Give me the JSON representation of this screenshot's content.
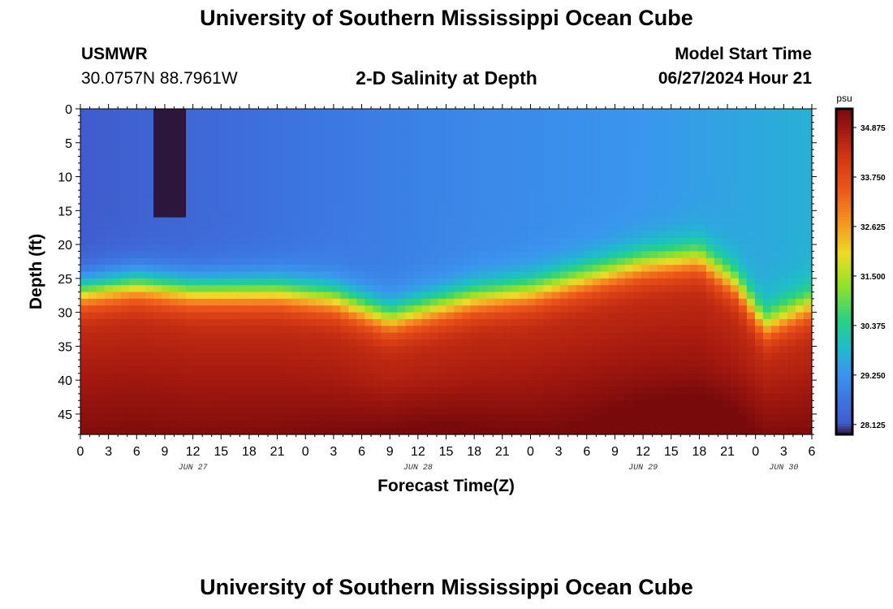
{
  "header": {
    "title": "University of Southern Mississippi Ocean Cube",
    "station": "USMWR",
    "coordinates": "30.0757N  88.7961W",
    "subtitle": "2-D Salinity at Depth",
    "model_start_label": "Model Start Time",
    "model_start_value": "06/27/2024 Hour 21"
  },
  "footer": {
    "title": "University of Southern Mississippi Ocean Cube"
  },
  "chart_data": {
    "type": "heatmap",
    "title": "2-D Salinity at Depth",
    "xlabel": "Forecast Time(Z)",
    "ylabel": "Depth (ft)",
    "x_tick_labels": [
      "0",
      "3",
      "6",
      "9",
      "12",
      "15",
      "18",
      "21",
      "0",
      "3",
      "6",
      "9",
      "12",
      "15",
      "18",
      "21",
      "0",
      "3",
      "6",
      "9",
      "12",
      "15",
      "18",
      "21",
      "0",
      "3",
      "6"
    ],
    "x_date_labels": [
      {
        "label": "JUN 27",
        "hour": 12
      },
      {
        "label": "JUN 28",
        "hour": 36
      },
      {
        "label": "JUN 29",
        "hour": 60
      },
      {
        "label": "JUN 30",
        "hour": 75
      }
    ],
    "x_range_hours": [
      0,
      78
    ],
    "y_ticks": [
      0,
      5,
      10,
      15,
      20,
      25,
      30,
      35,
      40,
      45
    ],
    "ylim": [
      0,
      48
    ],
    "colorbar": {
      "unit": "psu",
      "ticks": [
        "34.875",
        "33.750",
        "32.625",
        "31.500",
        "30.375",
        "29.250",
        "28.125"
      ],
      "range": [
        27.9,
        35.3
      ]
    },
    "halocline_depth_ft": [
      {
        "hour": 0,
        "depth": 27
      },
      {
        "hour": 6,
        "depth": 26
      },
      {
        "hour": 12,
        "depth": 27
      },
      {
        "hour": 21,
        "depth": 27
      },
      {
        "hour": 27,
        "depth": 28
      },
      {
        "hour": 33,
        "depth": 31
      },
      {
        "hour": 36,
        "depth": 30
      },
      {
        "hour": 42,
        "depth": 28
      },
      {
        "hour": 48,
        "depth": 27
      },
      {
        "hour": 54,
        "depth": 25
      },
      {
        "hour": 60,
        "depth": 23
      },
      {
        "hour": 66,
        "depth": 22
      },
      {
        "hour": 70,
        "depth": 26
      },
      {
        "hour": 73,
        "depth": 32
      },
      {
        "hour": 78,
        "depth": 29
      }
    ],
    "surface_salinity_psu": [
      {
        "hour": 0,
        "value": 28.3
      },
      {
        "hour": 20,
        "value": 28.6
      },
      {
        "hour": 40,
        "value": 29.0
      },
      {
        "hour": 60,
        "value": 29.3
      },
      {
        "hour": 78,
        "value": 29.7
      }
    ],
    "plume": {
      "hour_start": 7.5,
      "hour_end": 11.3,
      "depth_max": 16,
      "value": 27.9
    }
  }
}
